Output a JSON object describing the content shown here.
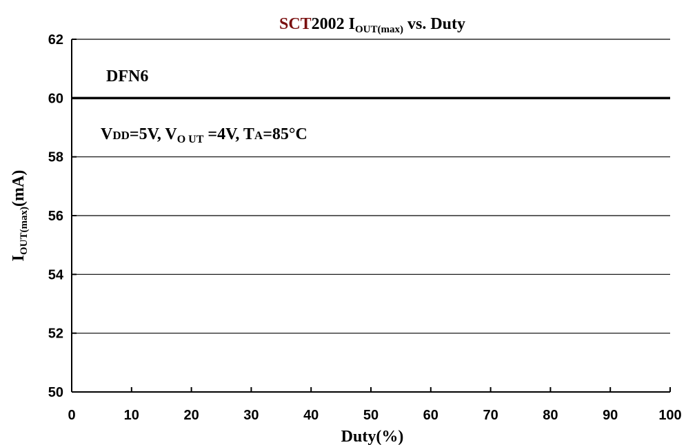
{
  "chart_data": {
    "type": "line",
    "title": {
      "brand": "SCT",
      "model": "2002",
      "i_main": "I",
      "i_sub": "OUT(max)",
      "rest": "vs. Duty",
      "brand_color": "#7a1010"
    },
    "xlabel": "Duty(%)",
    "ylabel": {
      "main": "I",
      "sub": "OUT(max)",
      "unit": "(mA)"
    },
    "xlim": [
      0,
      100
    ],
    "ylim": [
      50,
      62
    ],
    "x_ticks": [
      "0",
      "10",
      "20",
      "30",
      "40",
      "50",
      "60",
      "70",
      "80",
      "90",
      "100"
    ],
    "y_ticks": [
      "50",
      "52",
      "54",
      "56",
      "58",
      "60",
      "62"
    ],
    "grid": "horizontal",
    "series": [
      {
        "x": [
          0,
          100
        ],
        "y": [
          60,
          60
        ],
        "color": "#000000"
      }
    ],
    "annotations": {
      "package": "DFN6",
      "cond_v1": "V",
      "cond_v1_sub": "DD",
      "cond_v1_val": "=5V, ",
      "cond_v2": "V",
      "cond_v2_sub": "O UT",
      "cond_v2_val": " =4V, ",
      "cond_t": "T",
      "cond_t_sub": "A",
      "cond_t_val": "=85°C"
    }
  }
}
